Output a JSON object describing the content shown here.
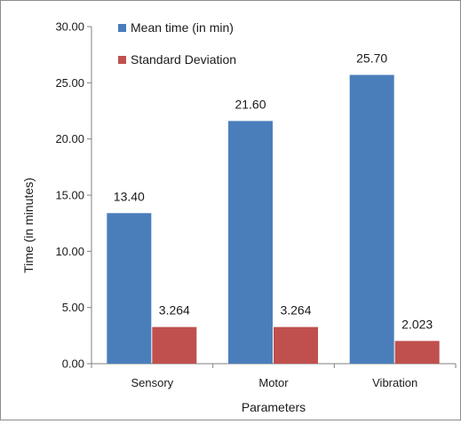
{
  "chart_data": {
    "type": "bar",
    "categories": [
      "Sensory",
      "Motor",
      "Vibration"
    ],
    "series": [
      {
        "name": "Mean time (in min)",
        "values": [
          13.4,
          21.6,
          25.7
        ],
        "labels": [
          "13.40",
          "21.60",
          "25.70"
        ],
        "color": "#4a7ebb"
      },
      {
        "name": "Standard Deviation",
        "values": [
          3.264,
          3.264,
          2.023
        ],
        "labels": [
          "3.264",
          "3.264",
          "2.023"
        ],
        "color": "#c0504d"
      }
    ],
    "xlabel": "Parameters",
    "ylabel": "Time (in minutes)",
    "ylim": [
      0,
      30
    ],
    "yticks": [
      0,
      5,
      10,
      15,
      20,
      25,
      30
    ],
    "ytick_labels": [
      "0.00",
      "5.00",
      "10.00",
      "15.00",
      "20.00",
      "25.00",
      "30.00"
    ],
    "grid": false,
    "legend_position": "top-left"
  }
}
